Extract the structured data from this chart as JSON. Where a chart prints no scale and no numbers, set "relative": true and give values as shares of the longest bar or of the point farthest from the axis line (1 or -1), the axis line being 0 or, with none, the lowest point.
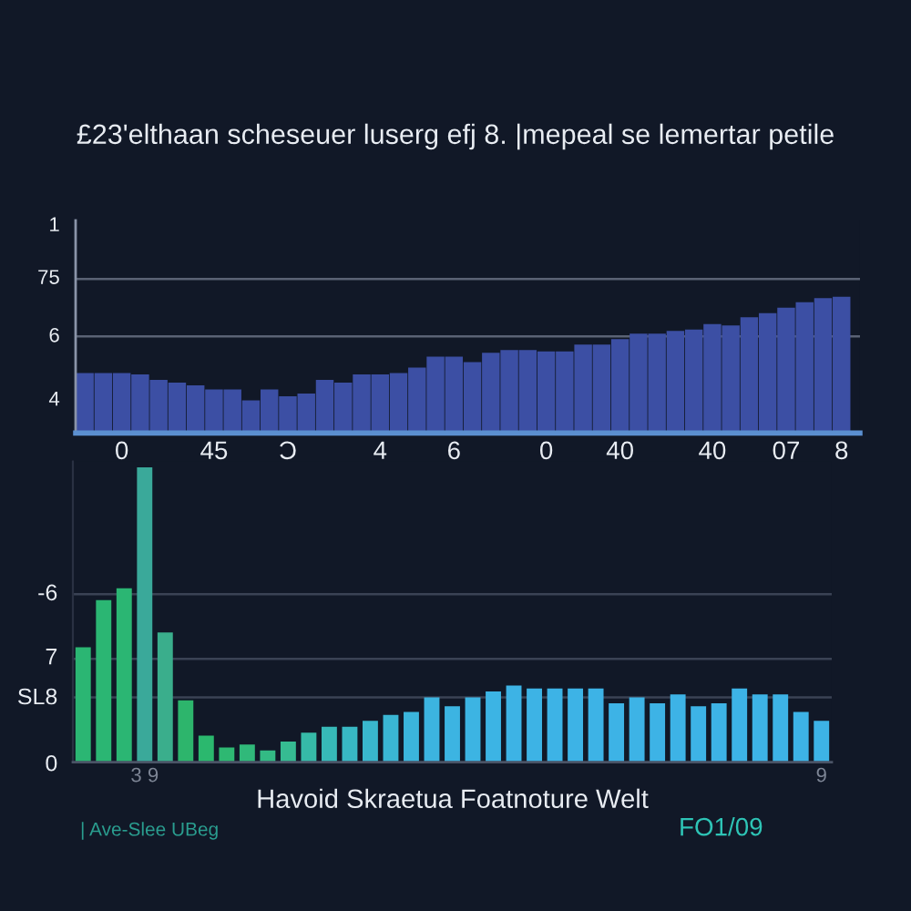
{
  "chart_data": [
    {
      "type": "bar",
      "relative": true,
      "title": "£23'elthaan scheseuer luserg efj 8. |mepeal se lemertar petile",
      "categories": [
        null,
        null,
        "0",
        null,
        null,
        null,
        null,
        "45",
        null,
        null,
        null,
        "Ɔ",
        null,
        null,
        null,
        null,
        "4",
        null,
        null,
        null,
        "6",
        null,
        null,
        null,
        null,
        "0",
        null,
        null,
        null,
        "40",
        null,
        null,
        null,
        null,
        "40",
        null,
        null,
        null,
        "07",
        null,
        null,
        "8"
      ],
      "values": [
        0.44,
        0.44,
        0.44,
        0.43,
        0.39,
        0.37,
        0.35,
        0.32,
        0.32,
        0.24,
        0.32,
        0.27,
        0.29,
        0.39,
        0.37,
        0.43,
        0.43,
        0.44,
        0.48,
        0.56,
        0.56,
        0.52,
        0.59,
        0.61,
        0.61,
        0.6,
        0.6,
        0.65,
        0.65,
        0.69,
        0.73,
        0.73,
        0.75,
        0.76,
        0.8,
        0.79,
        0.85,
        0.88,
        0.92,
        0.96,
        0.99,
        1
      ],
      "color": "#3c4fa4",
      "ref_lines": [
        {
          "axis": "y",
          "value": 1.13,
          "color": "#5a6274"
        },
        {
          "axis": "y",
          "value": 0.71,
          "color": "#5a6274"
        }
      ],
      "annotations": [
        "1",
        "75",
        "6",
        "4"
      ]
    },
    {
      "type": "bar",
      "relative": true,
      "xlabel": "Havoid Skraetua Foatnoture Welt",
      "categories": [
        null,
        null,
        null,
        "3 9",
        null,
        null,
        null,
        null,
        null,
        null,
        null,
        null,
        null,
        null,
        null,
        null,
        null,
        null,
        null,
        null,
        null,
        null,
        null,
        null,
        null,
        null,
        null,
        null,
        null,
        null,
        null,
        null,
        null,
        null,
        null,
        null,
        "9"
      ],
      "values": [
        0.39,
        0.55,
        0.59,
        1,
        0.44,
        0.21,
        0.09,
        0.05,
        0.06,
        0.04,
        0.07,
        0.1,
        0.12,
        0.12,
        0.14,
        0.16,
        0.17,
        0.22,
        0.19,
        0.22,
        0.24,
        0.26,
        0.25,
        0.25,
        0.25,
        0.25,
        0.2,
        0.22,
        0.2,
        0.23,
        0.19,
        0.2,
        0.25,
        0.23,
        0.23,
        0.17,
        0.14
      ],
      "colors": [
        "#2bb673",
        "#2bb673",
        "#2bb673",
        "#3aa99a",
        "#3aae8c",
        "#2db56c",
        "#2bb86e",
        "#2eb872",
        "#30b97a",
        "#33ba84",
        "#36bb92",
        "#36baa8",
        "#37b9b8",
        "#38b8c4",
        "#39b7cd",
        "#3ab6d4",
        "#3bb5dc",
        "#3cb4e0",
        "#3cb4e2",
        "#3cb4e3",
        "#3cb4e4",
        "#3db3e5",
        "#3db3e5",
        "#3db3e6",
        "#3db3e6",
        "#3db3e6",
        "#3db3e6",
        "#3db3e6",
        "#3db3e6",
        "#3db3e6",
        "#3db3e6",
        "#3db3e6",
        "#3db3e6",
        "#3db3e6",
        "#3db3e6",
        "#3db3e6",
        "#3db3e6"
      ],
      "ref_lines": [
        {
          "axis": "y",
          "value": 0.57,
          "color": "#3a4254"
        },
        {
          "axis": "y",
          "value": 0.35,
          "color": "#3a4254"
        },
        {
          "axis": "y",
          "value": 0.22,
          "color": "#3a4254"
        }
      ],
      "annotations": [
        "-6",
        "7",
        "SL8",
        "0",
        "| Ave-Slee UBeg",
        "FO1/09"
      ]
    }
  ]
}
